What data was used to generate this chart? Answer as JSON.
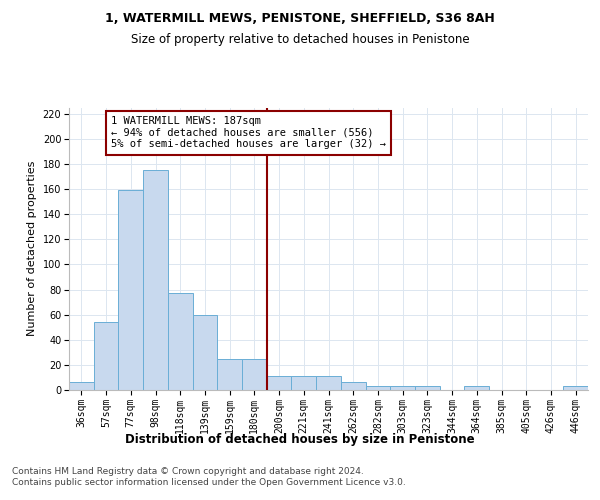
{
  "title": "1, WATERMILL MEWS, PENISTONE, SHEFFIELD, S36 8AH",
  "subtitle": "Size of property relative to detached houses in Penistone",
  "xlabel": "Distribution of detached houses by size in Penistone",
  "ylabel": "Number of detached properties",
  "categories": [
    "36sqm",
    "57sqm",
    "77sqm",
    "98sqm",
    "118sqm",
    "139sqm",
    "159sqm",
    "180sqm",
    "200sqm",
    "221sqm",
    "241sqm",
    "262sqm",
    "282sqm",
    "303sqm",
    "323sqm",
    "344sqm",
    "364sqm",
    "385sqm",
    "405sqm",
    "426sqm",
    "446sqm"
  ],
  "values": [
    6,
    54,
    159,
    175,
    77,
    60,
    25,
    25,
    11,
    11,
    11,
    6,
    3,
    3,
    3,
    0,
    3,
    0,
    0,
    0,
    3
  ],
  "bar_color": "#c8d9ee",
  "bar_edge_color": "#6aaed6",
  "vline_color": "#8b0000",
  "annotation_text": "1 WATERMILL MEWS: 187sqm\n← 94% of detached houses are smaller (556)\n5% of semi-detached houses are larger (32) →",
  "annotation_box_color": "#8b0000",
  "ylim": [
    0,
    225
  ],
  "yticks": [
    0,
    20,
    40,
    60,
    80,
    100,
    120,
    140,
    160,
    180,
    200,
    220
  ],
  "footer": "Contains HM Land Registry data © Crown copyright and database right 2024.\nContains public sector information licensed under the Open Government Licence v3.0.",
  "title_fontsize": 9,
  "subtitle_fontsize": 8.5,
  "xlabel_fontsize": 8.5,
  "ylabel_fontsize": 8,
  "tick_fontsize": 7,
  "annotation_fontsize": 7.5,
  "footer_fontsize": 6.5,
  "background_color": "#ffffff",
  "grid_color": "#dce6f0"
}
